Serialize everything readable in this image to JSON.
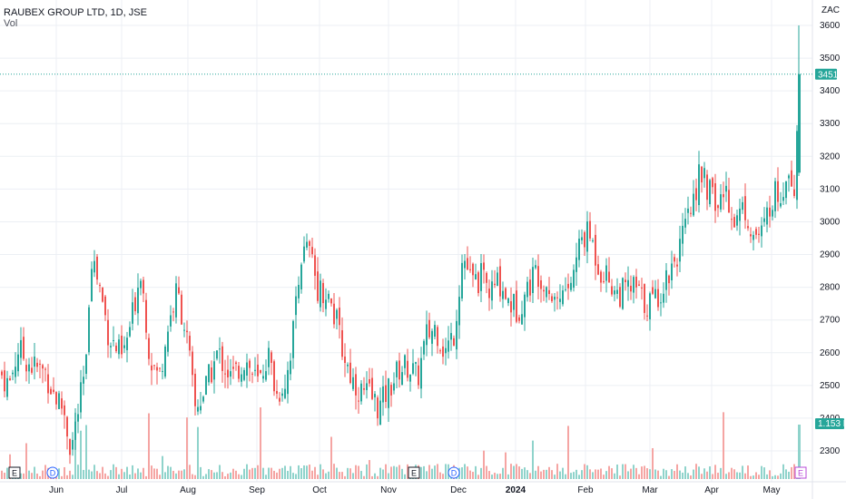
{
  "header": {
    "symbol": "RAUBEX GROUP LTD, 1D, JSE",
    "indicator": "Vol"
  },
  "currency": "ZAC",
  "colors": {
    "up": "#26a69a",
    "down": "#ef5350",
    "up_vol": "#8fd3cb",
    "down_vol": "#f5a5a3",
    "grid": "#eceff4"
  },
  "chart_data": {
    "type": "candlestick",
    "ylim": [
      2220,
      3630
    ],
    "y_ticks": [
      2300,
      2400,
      2500,
      2600,
      2700,
      2800,
      2900,
      3000,
      3100,
      3200,
      3300,
      3400,
      3500,
      3600
    ],
    "x_labels": [
      "Jun",
      "Jul",
      "Aug",
      "Sep",
      "Oct",
      "Nov",
      "Dec",
      "2024",
      "Feb",
      "Mar",
      "Apr",
      "May"
    ],
    "last_price": 3451,
    "volume_label": "1.153 M",
    "price_points": [
      [
        0,
        2540
      ],
      [
        10,
        2500
      ],
      [
        20,
        2610
      ],
      [
        35,
        2560
      ],
      [
        50,
        2540
      ],
      [
        60,
        2470
      ],
      [
        70,
        2430
      ],
      [
        78,
        2300
      ],
      [
        88,
        2450
      ],
      [
        95,
        2560
      ],
      [
        100,
        2910
      ],
      [
        110,
        2800
      ],
      [
        120,
        2650
      ],
      [
        135,
        2580
      ],
      [
        145,
        2700
      ],
      [
        155,
        2860
      ],
      [
        165,
        2590
      ],
      [
        175,
        2520
      ],
      [
        185,
        2680
      ],
      [
        195,
        2790
      ],
      [
        205,
        2660
      ],
      [
        215,
        2430
      ],
      [
        225,
        2480
      ],
      [
        240,
        2600
      ],
      [
        255,
        2520
      ],
      [
        270,
        2580
      ],
      [
        285,
        2500
      ],
      [
        295,
        2600
      ],
      [
        305,
        2470
      ],
      [
        315,
        2520
      ],
      [
        322,
        2640
      ],
      [
        330,
        2880
      ],
      [
        340,
        2920
      ],
      [
        350,
        2800
      ],
      [
        360,
        2780
      ],
      [
        370,
        2700
      ],
      [
        378,
        2600
      ],
      [
        388,
        2520
      ],
      [
        398,
        2480
      ],
      [
        408,
        2470
      ],
      [
        418,
        2430
      ],
      [
        428,
        2490
      ],
      [
        440,
        2550
      ],
      [
        450,
        2560
      ],
      [
        460,
        2520
      ],
      [
        470,
        2650
      ],
      [
        480,
        2680
      ],
      [
        490,
        2600
      ],
      [
        500,
        2660
      ],
      [
        510,
        2900
      ],
      [
        520,
        2810
      ],
      [
        530,
        2830
      ],
      [
        540,
        2780
      ],
      [
        550,
        2820
      ],
      [
        560,
        2760
      ],
      [
        570,
        2730
      ],
      [
        580,
        2790
      ],
      [
        590,
        2850
      ],
      [
        600,
        2830
      ],
      [
        610,
        2770
      ],
      [
        620,
        2780
      ],
      [
        630,
        2820
      ],
      [
        640,
        2950
      ],
      [
        650,
        2960
      ],
      [
        660,
        2860
      ],
      [
        670,
        2830
      ],
      [
        680,
        2780
      ],
      [
        690,
        2790
      ],
      [
        700,
        2800
      ],
      [
        710,
        2750
      ],
      [
        720,
        2760
      ],
      [
        730,
        2800
      ],
      [
        740,
        2870
      ],
      [
        750,
        2930
      ],
      [
        760,
        3020
      ],
      [
        770,
        3150
      ],
      [
        780,
        3100
      ],
      [
        790,
        3040
      ],
      [
        800,
        3100
      ],
      [
        810,
        3000
      ],
      [
        820,
        3050
      ],
      [
        830,
        2960
      ],
      [
        840,
        2960
      ],
      [
        850,
        3080
      ],
      [
        860,
        3090
      ],
      [
        870,
        3180
      ],
      [
        875,
        3100
      ],
      [
        880,
        3451
      ]
    ],
    "volume_events": [
      {
        "type": "E",
        "label": "E"
      },
      {
        "type": "D",
        "label": "D"
      },
      {
        "type": "E",
        "label": "E"
      },
      {
        "type": "D",
        "label": "D"
      },
      {
        "type": "E",
        "label": "E"
      }
    ]
  }
}
